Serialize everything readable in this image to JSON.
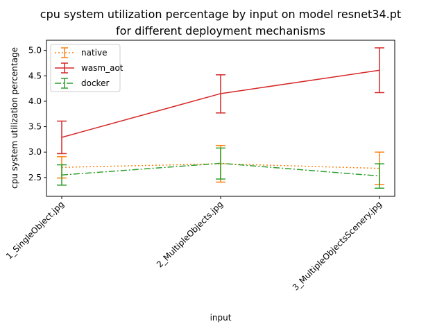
{
  "chart_data": {
    "type": "line",
    "title_line1": "cpu system utilization percentage by input on model resnet34.pt",
    "title_line2": "for different deployment mechanisms",
    "xlabel": "input",
    "ylabel": "cpu system utilization percentage",
    "categories": [
      "1_SingleObject.jpg",
      "2_MultipleObjects.jpg",
      "3_MultipleObjectsScenery.jpg"
    ],
    "ylim": [
      2.13,
      5.2
    ],
    "yticks": [
      2.5,
      3.0,
      3.5,
      4.0,
      4.5,
      5.0
    ],
    "ytick_labels": [
      "2.5",
      "3.0",
      "3.5",
      "4.0",
      "4.5",
      "5.0"
    ],
    "grid": false,
    "legend_position": "upper-left",
    "series": [
      {
        "name": "native",
        "color": "#ff7f0e",
        "dash": "dotted",
        "values": [
          2.7,
          2.77,
          2.68
        ],
        "err_low": [
          2.49,
          2.41,
          2.36
        ],
        "err_high": [
          2.91,
          3.13,
          3.0
        ]
      },
      {
        "name": "wasm_aot",
        "color": "#d62728",
        "dash": "solid",
        "values": [
          3.29,
          4.15,
          4.61
        ],
        "err_low": [
          2.97,
          3.77,
          4.17
        ],
        "err_high": [
          3.61,
          4.52,
          5.05
        ]
      },
      {
        "name": "docker",
        "color": "#2ca02c",
        "dash": "dashdot",
        "values": [
          2.55,
          2.78,
          2.53
        ],
        "err_low": [
          2.35,
          2.47,
          2.29
        ],
        "err_high": [
          2.75,
          3.08,
          2.77
        ]
      }
    ]
  }
}
